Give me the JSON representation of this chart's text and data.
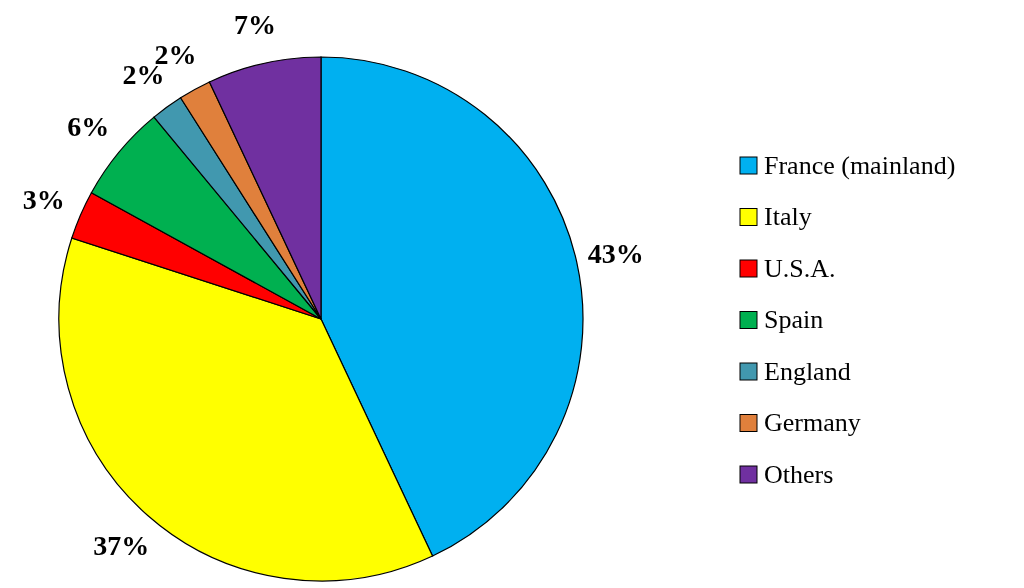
{
  "chart_data": {
    "type": "pie",
    "categories": [
      "France (mainland)",
      "Italy",
      "U.S.A.",
      "Spain",
      "England",
      "Germany",
      "Others"
    ],
    "values": [
      43,
      37,
      3,
      6,
      2,
      2,
      7
    ],
    "value_labels": [
      "43%",
      "37%",
      "3%",
      "6%",
      "2%",
      "2%",
      "7%"
    ],
    "colors": [
      "#00b0f0",
      "#ffff00",
      "#ff0000",
      "#00b050",
      "#4198af",
      "#e0803c",
      "#7030a0"
    ],
    "legend": "right"
  }
}
